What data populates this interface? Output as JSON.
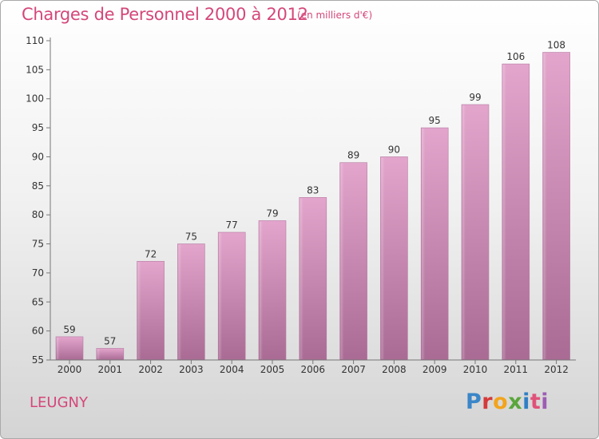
{
  "header": {
    "title": "Charges de Personnel 2000 à 2012",
    "subtitle": "(en milliers d'€)"
  },
  "footer": {
    "commune": "LEUGNY",
    "logo_text": "Proxiti"
  },
  "colors": {
    "title": "#d4477a",
    "bar_top": "#e3a5cc",
    "bar_bottom": "#a96b94",
    "axis": "#666666"
  },
  "chart_data": {
    "type": "bar",
    "title": "Charges de Personnel 2000 à 2012",
    "subtitle": "(en milliers d'€)",
    "categories": [
      "2000",
      "2001",
      "2002",
      "2003",
      "2004",
      "2005",
      "2006",
      "2007",
      "2008",
      "2009",
      "2010",
      "2011",
      "2012"
    ],
    "values": [
      59,
      57,
      72,
      75,
      77,
      79,
      83,
      89,
      90,
      95,
      99,
      106,
      108
    ],
    "ylim": [
      55,
      110
    ],
    "yticks": [
      55,
      60,
      65,
      70,
      75,
      80,
      85,
      90,
      95,
      100,
      105,
      110
    ],
    "grid": false,
    "xlabel": "",
    "ylabel": ""
  }
}
